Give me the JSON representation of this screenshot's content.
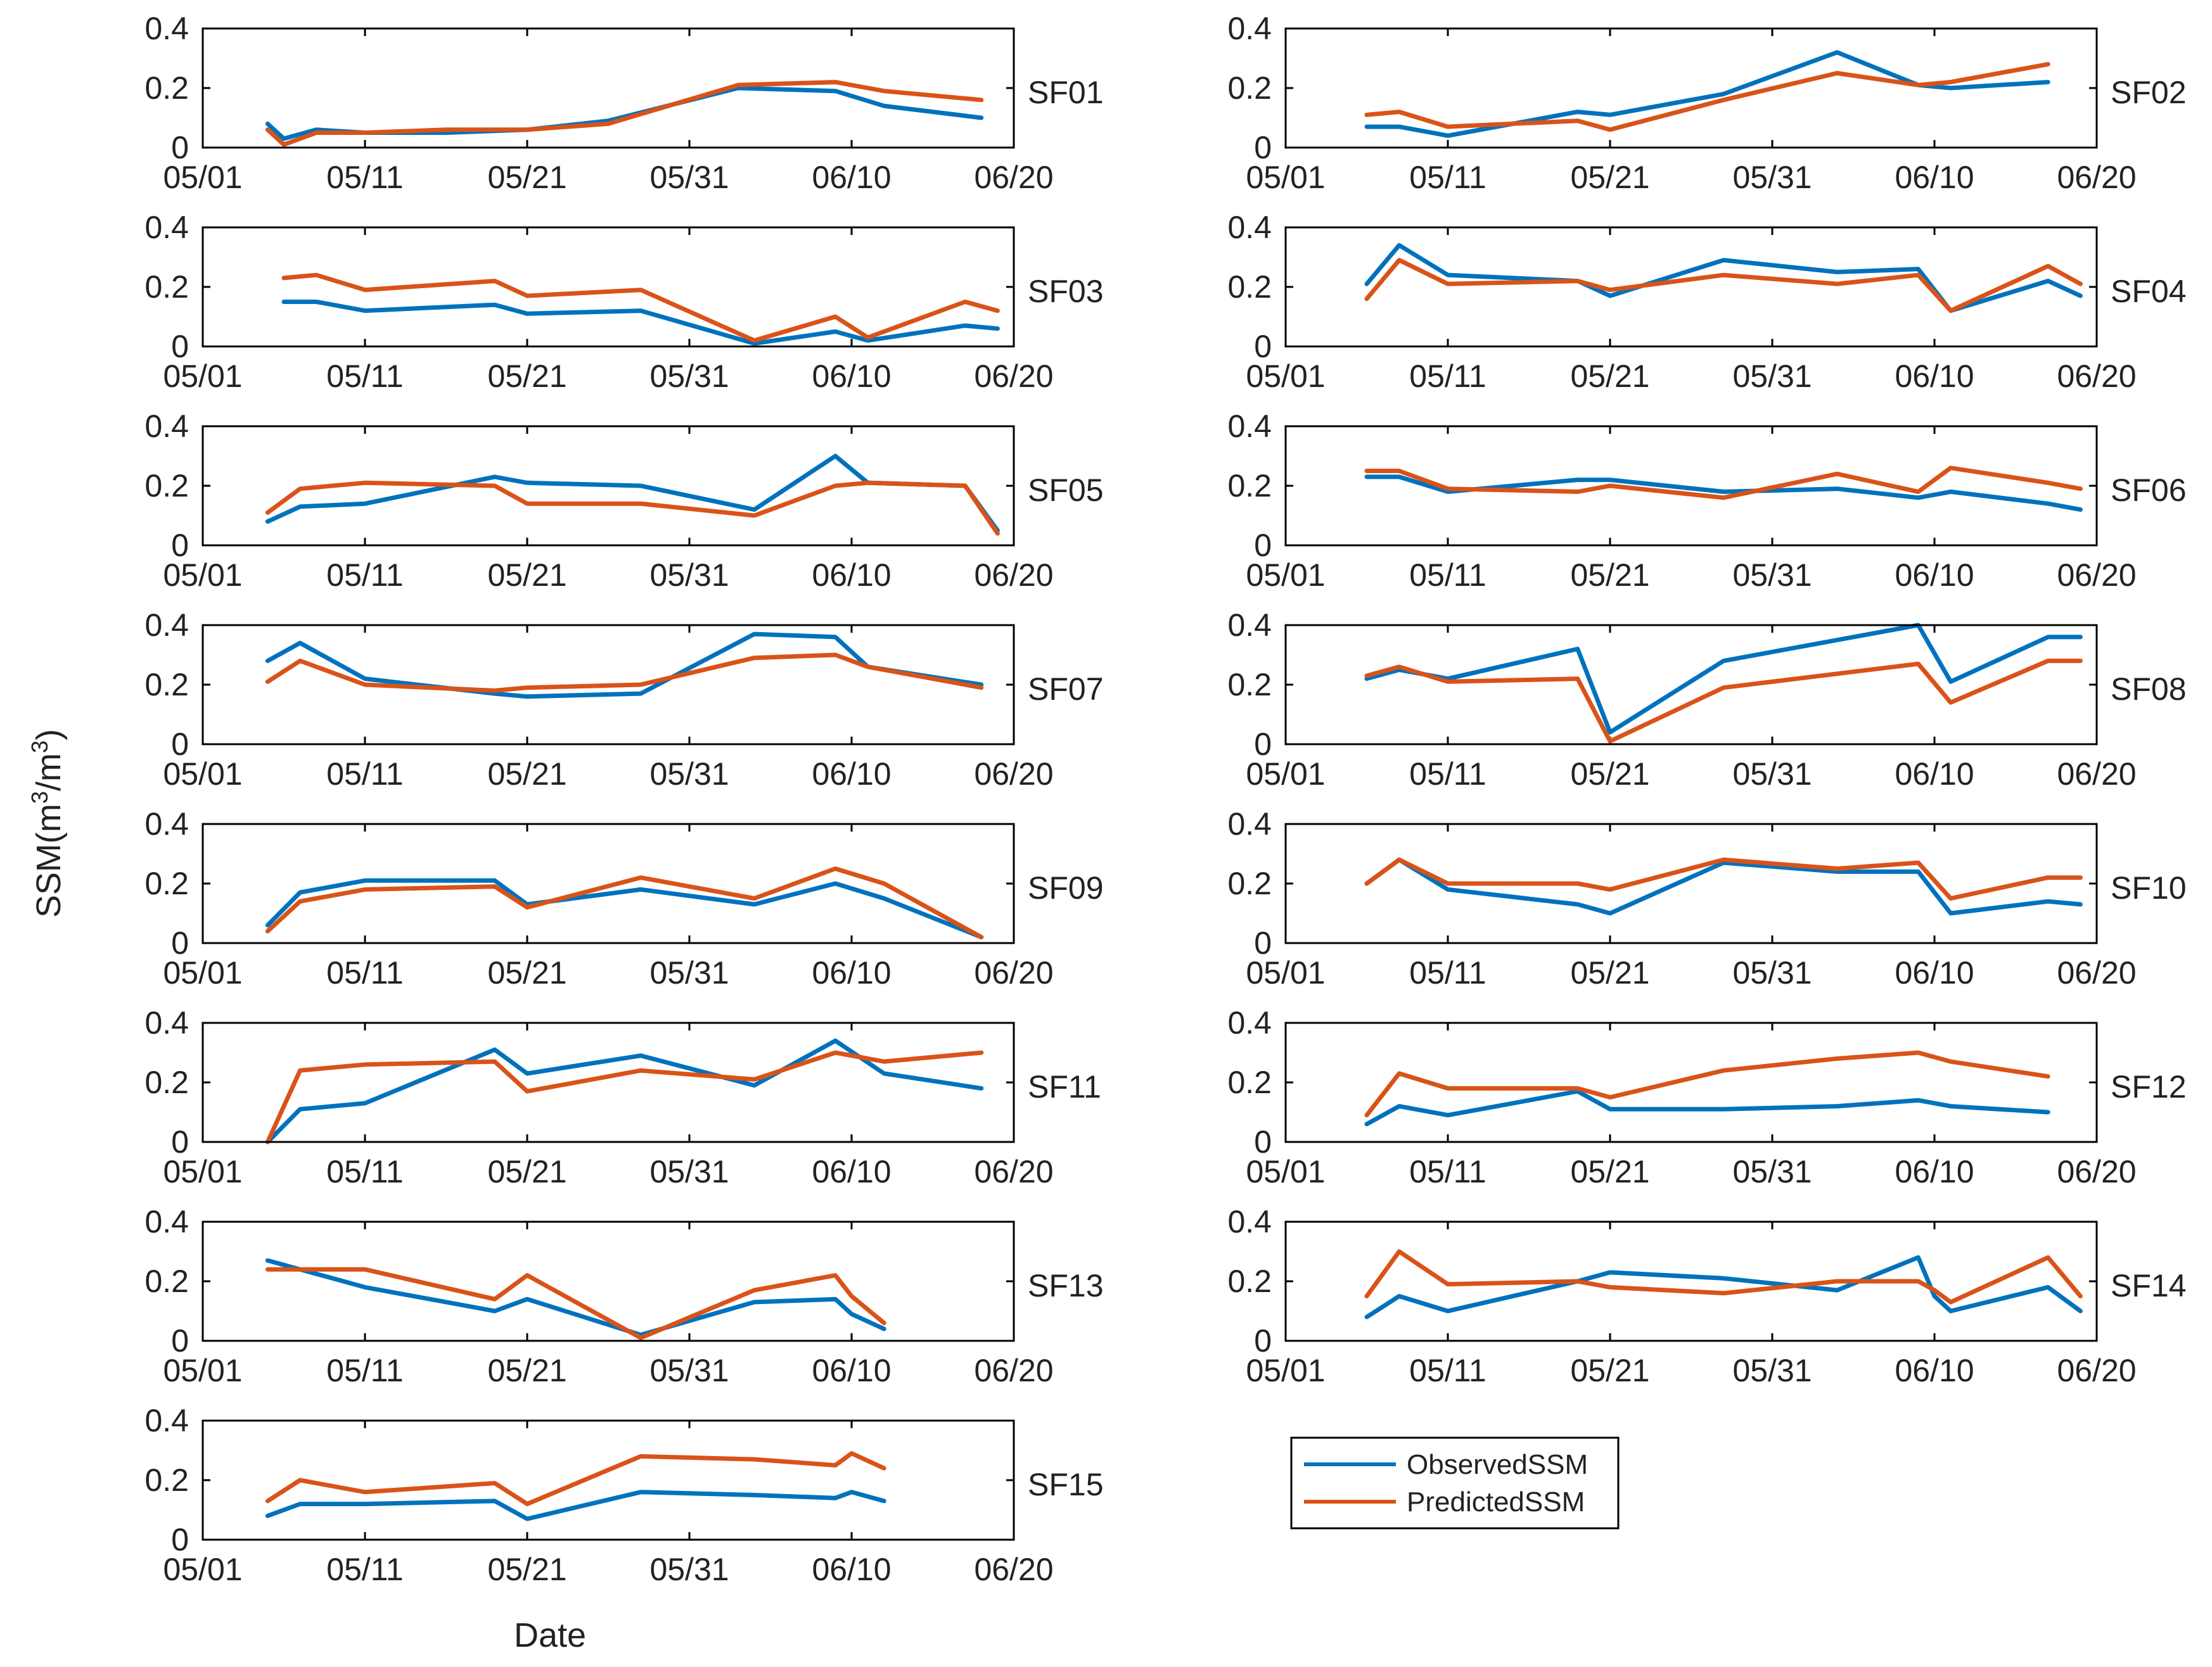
{
  "chart_data": {
    "type": "line",
    "ylabel_main": "SSM(m",
    "ylabel_sup1": "3",
    "ylabel_mid": "/m",
    "ylabel_sup2": "3",
    "ylabel_end": ")",
    "xlabel": "Date",
    "x_ticks": [
      "05/01",
      "05/11",
      "05/21",
      "05/31",
      "06/10",
      "06/20"
    ],
    "y_ticks": [
      "0",
      "0.2",
      "0.4"
    ],
    "xlim": [
      "05/01",
      "06/20"
    ],
    "ylim": [
      0,
      0.4
    ],
    "colors": {
      "observed": "#0072BD",
      "predicted": "#D95319"
    },
    "legend": {
      "position": "below right column",
      "entries": [
        "ObservedSSM",
        "PredictedSSM"
      ]
    },
    "panels": [
      {
        "label": "SF01",
        "series": [
          {
            "name": "ObservedSSM",
            "x": [
              "05/05",
              "05/06",
              "05/08",
              "05/11",
              "05/16",
              "05/21",
              "05/26",
              "06/03",
              "06/09",
              "06/12",
              "06/18"
            ],
            "y": [
              0.08,
              0.03,
              0.06,
              0.05,
              0.05,
              0.06,
              0.09,
              0.2,
              0.19,
              0.14,
              0.1
            ]
          },
          {
            "name": "PredictedSSM",
            "x": [
              "05/05",
              "05/06",
              "05/08",
              "05/11",
              "05/16",
              "05/21",
              "05/26",
              "06/03",
              "06/09",
              "06/12",
              "06/18"
            ],
            "y": [
              0.06,
              0.01,
              0.05,
              0.05,
              0.06,
              0.06,
              0.08,
              0.21,
              0.22,
              0.19,
              0.16
            ]
          }
        ]
      },
      {
        "label": "SF02",
        "series": [
          {
            "name": "ObservedSSM",
            "x": [
              "05/06",
              "05/08",
              "05/11",
              "05/19",
              "05/21",
              "05/28",
              "06/04",
              "06/09",
              "06/11",
              "06/17"
            ],
            "y": [
              0.07,
              0.07,
              0.04,
              0.12,
              0.11,
              0.18,
              0.32,
              0.21,
              0.2,
              0.22
            ]
          },
          {
            "name": "PredictedSSM",
            "x": [
              "05/06",
              "05/08",
              "05/11",
              "05/19",
              "05/21",
              "05/28",
              "06/04",
              "06/09",
              "06/11",
              "06/17"
            ],
            "y": [
              0.11,
              0.12,
              0.07,
              0.09,
              0.06,
              0.16,
              0.25,
              0.21,
              0.22,
              0.28
            ]
          }
        ]
      },
      {
        "label": "SF03",
        "series": [
          {
            "name": "ObservedSSM",
            "x": [
              "05/06",
              "05/08",
              "05/11",
              "05/19",
              "05/21",
              "05/28",
              "06/04",
              "06/09",
              "06/11",
              "06/17",
              "06/19"
            ],
            "y": [
              0.15,
              0.15,
              0.12,
              0.14,
              0.11,
              0.12,
              0.01,
              0.05,
              0.02,
              0.07,
              0.06
            ]
          },
          {
            "name": "PredictedSSM",
            "x": [
              "05/06",
              "05/08",
              "05/11",
              "05/19",
              "05/21",
              "05/28",
              "06/04",
              "06/09",
              "06/11",
              "06/17",
              "06/19"
            ],
            "y": [
              0.23,
              0.24,
              0.19,
              0.22,
              0.17,
              0.19,
              0.02,
              0.1,
              0.03,
              0.15,
              0.12
            ]
          }
        ]
      },
      {
        "label": "SF04",
        "series": [
          {
            "name": "ObservedSSM",
            "x": [
              "05/06",
              "05/08",
              "05/11",
              "05/19",
              "05/21",
              "05/28",
              "06/04",
              "06/09",
              "06/11",
              "06/17",
              "06/19"
            ],
            "y": [
              0.21,
              0.34,
              0.24,
              0.22,
              0.17,
              0.29,
              0.25,
              0.26,
              0.12,
              0.22,
              0.17
            ]
          },
          {
            "name": "PredictedSSM",
            "x": [
              "05/06",
              "05/08",
              "05/11",
              "05/19",
              "05/21",
              "05/28",
              "06/04",
              "06/09",
              "06/11",
              "06/17",
              "06/19"
            ],
            "y": [
              0.16,
              0.29,
              0.21,
              0.22,
              0.19,
              0.24,
              0.21,
              0.24,
              0.12,
              0.27,
              0.21
            ]
          }
        ]
      },
      {
        "label": "SF05",
        "series": [
          {
            "name": "ObservedSSM",
            "x": [
              "05/05",
              "05/07",
              "05/11",
              "05/19",
              "05/21",
              "05/28",
              "06/04",
              "06/09",
              "06/11",
              "06/17",
              "06/19"
            ],
            "y": [
              0.08,
              0.13,
              0.14,
              0.23,
              0.21,
              0.2,
              0.12,
              0.3,
              0.21,
              0.2,
              0.05
            ]
          },
          {
            "name": "PredictedSSM",
            "x": [
              "05/05",
              "05/07",
              "05/11",
              "05/19",
              "05/21",
              "05/28",
              "06/04",
              "06/09",
              "06/11",
              "06/17",
              "06/19"
            ],
            "y": [
              0.11,
              0.19,
              0.21,
              0.2,
              0.14,
              0.14,
              0.1,
              0.2,
              0.21,
              0.2,
              0.04
            ]
          }
        ]
      },
      {
        "label": "SF06",
        "series": [
          {
            "name": "ObservedSSM",
            "x": [
              "05/06",
              "05/08",
              "05/11",
              "05/19",
              "05/21",
              "05/28",
              "06/04",
              "06/09",
              "06/11",
              "06/17",
              "06/19"
            ],
            "y": [
              0.23,
              0.23,
              0.18,
              0.22,
              0.22,
              0.18,
              0.19,
              0.16,
              0.18,
              0.14,
              0.12
            ]
          },
          {
            "name": "PredictedSSM",
            "x": [
              "05/06",
              "05/08",
              "05/11",
              "05/19",
              "05/21",
              "05/28",
              "06/04",
              "06/09",
              "06/11",
              "06/17",
              "06/19"
            ],
            "y": [
              0.25,
              0.25,
              0.19,
              0.18,
              0.2,
              0.16,
              0.24,
              0.18,
              0.26,
              0.21,
              0.19
            ]
          }
        ]
      },
      {
        "label": "SF07",
        "series": [
          {
            "name": "ObservedSSM",
            "x": [
              "05/05",
              "05/07",
              "05/11",
              "05/19",
              "05/21",
              "05/28",
              "06/04",
              "06/09",
              "06/11",
              "06/18"
            ],
            "y": [
              0.28,
              0.34,
              0.22,
              0.17,
              0.16,
              0.17,
              0.37,
              0.36,
              0.26,
              0.2
            ]
          },
          {
            "name": "PredictedSSM",
            "x": [
              "05/05",
              "05/07",
              "05/11",
              "05/19",
              "05/21",
              "05/28",
              "06/04",
              "06/09",
              "06/11",
              "06/18"
            ],
            "y": [
              0.21,
              0.28,
              0.2,
              0.18,
              0.19,
              0.2,
              0.29,
              0.3,
              0.26,
              0.19
            ]
          }
        ]
      },
      {
        "label": "SF08",
        "series": [
          {
            "name": "ObservedSSM",
            "x": [
              "05/06",
              "05/08",
              "05/11",
              "05/19",
              "05/21",
              "05/28",
              "06/09",
              "06/11",
              "06/17",
              "06/19"
            ],
            "y": [
              0.22,
              0.25,
              0.22,
              0.32,
              0.04,
              0.28,
              0.4,
              0.21,
              0.36,
              0.36
            ]
          },
          {
            "name": "PredictedSSM",
            "x": [
              "05/06",
              "05/08",
              "05/11",
              "05/19",
              "05/21",
              "05/28",
              "06/09",
              "06/11",
              "06/17",
              "06/19"
            ],
            "y": [
              0.23,
              0.26,
              0.21,
              0.22,
              0.01,
              0.19,
              0.27,
              0.14,
              0.28,
              0.28
            ]
          }
        ]
      },
      {
        "label": "SF09",
        "series": [
          {
            "name": "ObservedSSM",
            "x": [
              "05/05",
              "05/07",
              "05/11",
              "05/19",
              "05/21",
              "05/28",
              "06/04",
              "06/09",
              "06/12",
              "06/18"
            ],
            "y": [
              0.06,
              0.17,
              0.21,
              0.21,
              0.13,
              0.18,
              0.13,
              0.2,
              0.15,
              0.02
            ]
          },
          {
            "name": "PredictedSSM",
            "x": [
              "05/05",
              "05/07",
              "05/11",
              "05/19",
              "05/21",
              "05/28",
              "06/04",
              "06/09",
              "06/12",
              "06/18"
            ],
            "y": [
              0.04,
              0.14,
              0.18,
              0.19,
              0.12,
              0.22,
              0.15,
              0.25,
              0.2,
              0.02
            ]
          }
        ]
      },
      {
        "label": "SF10",
        "series": [
          {
            "name": "ObservedSSM",
            "x": [
              "05/06",
              "05/08",
              "05/11",
              "05/19",
              "05/21",
              "05/28",
              "06/04",
              "06/09",
              "06/11",
              "06/17",
              "06/19"
            ],
            "y": [
              0.2,
              0.28,
              0.18,
              0.13,
              0.1,
              0.27,
              0.24,
              0.24,
              0.1,
              0.14,
              0.13
            ]
          },
          {
            "name": "PredictedSSM",
            "x": [
              "05/06",
              "05/08",
              "05/11",
              "05/19",
              "05/21",
              "05/28",
              "06/04",
              "06/09",
              "06/11",
              "06/17",
              "06/19"
            ],
            "y": [
              0.2,
              0.28,
              0.2,
              0.2,
              0.18,
              0.28,
              0.25,
              0.27,
              0.15,
              0.22,
              0.22
            ]
          }
        ]
      },
      {
        "label": "SF11",
        "series": [
          {
            "name": "ObservedSSM",
            "x": [
              "05/05",
              "05/07",
              "05/11",
              "05/19",
              "05/21",
              "05/28",
              "06/04",
              "06/09",
              "06/12",
              "06/18"
            ],
            "y": [
              0.0,
              0.11,
              0.13,
              0.31,
              0.23,
              0.29,
              0.19,
              0.34,
              0.23,
              0.18
            ]
          },
          {
            "name": "PredictedSSM",
            "x": [
              "05/05",
              "05/07",
              "05/11",
              "05/19",
              "05/21",
              "05/28",
              "06/04",
              "06/09",
              "06/12",
              "06/18"
            ],
            "y": [
              0.0,
              0.24,
              0.26,
              0.27,
              0.17,
              0.24,
              0.21,
              0.3,
              0.27,
              0.3
            ]
          }
        ]
      },
      {
        "label": "SF12",
        "series": [
          {
            "name": "ObservedSSM",
            "x": [
              "05/06",
              "05/08",
              "05/11",
              "05/19",
              "05/21",
              "05/28",
              "06/04",
              "06/09",
              "06/11",
              "06/17"
            ],
            "y": [
              0.06,
              0.12,
              0.09,
              0.17,
              0.11,
              0.11,
              0.12,
              0.14,
              0.12,
              0.1
            ]
          },
          {
            "name": "PredictedSSM",
            "x": [
              "05/06",
              "05/08",
              "05/11",
              "05/19",
              "05/21",
              "05/28",
              "06/04",
              "06/09",
              "06/11",
              "06/17"
            ],
            "y": [
              0.09,
              0.23,
              0.18,
              0.18,
              0.15,
              0.24,
              0.28,
              0.3,
              0.27,
              0.22
            ]
          }
        ]
      },
      {
        "label": "SF13",
        "series": [
          {
            "name": "ObservedSSM",
            "x": [
              "05/05",
              "05/11",
              "05/19",
              "05/21",
              "05/28",
              "06/04",
              "06/09",
              "06/10",
              "06/12"
            ],
            "y": [
              0.27,
              0.18,
              0.1,
              0.14,
              0.02,
              0.13,
              0.14,
              0.09,
              0.04
            ]
          },
          {
            "name": "PredictedSSM",
            "x": [
              "05/05",
              "05/11",
              "05/19",
              "05/21",
              "05/28",
              "06/04",
              "06/09",
              "06/10",
              "06/12"
            ],
            "y": [
              0.24,
              0.24,
              0.14,
              0.22,
              0.01,
              0.17,
              0.22,
              0.15,
              0.06
            ]
          }
        ]
      },
      {
        "label": "SF14",
        "series": [
          {
            "name": "ObservedSSM",
            "x": [
              "05/06",
              "05/08",
              "05/11",
              "05/19",
              "05/21",
              "05/28",
              "06/04",
              "06/09",
              "06/10",
              "06/11",
              "06/17",
              "06/19"
            ],
            "y": [
              0.08,
              0.15,
              0.1,
              0.2,
              0.23,
              0.21,
              0.17,
              0.28,
              0.15,
              0.1,
              0.18,
              0.1
            ]
          },
          {
            "name": "PredictedSSM",
            "x": [
              "05/06",
              "05/08",
              "05/11",
              "05/19",
              "05/21",
              "05/28",
              "06/04",
              "06/09",
              "06/10",
              "06/11",
              "06/17",
              "06/19"
            ],
            "y": [
              0.15,
              0.3,
              0.19,
              0.2,
              0.18,
              0.16,
              0.2,
              0.2,
              0.17,
              0.13,
              0.28,
              0.15
            ]
          }
        ]
      },
      {
        "label": "SF15",
        "series": [
          {
            "name": "ObservedSSM",
            "x": [
              "05/05",
              "05/07",
              "05/11",
              "05/19",
              "05/21",
              "05/28",
              "06/04",
              "06/09",
              "06/10",
              "06/12"
            ],
            "y": [
              0.08,
              0.12,
              0.12,
              0.13,
              0.07,
              0.16,
              0.15,
              0.14,
              0.16,
              0.13
            ]
          },
          {
            "name": "PredictedSSM",
            "x": [
              "05/05",
              "05/07",
              "05/11",
              "05/19",
              "05/21",
              "05/28",
              "06/04",
              "06/09",
              "06/10",
              "06/12"
            ],
            "y": [
              0.13,
              0.2,
              0.16,
              0.19,
              0.12,
              0.28,
              0.27,
              0.25,
              0.29,
              0.24
            ]
          }
        ]
      }
    ]
  }
}
